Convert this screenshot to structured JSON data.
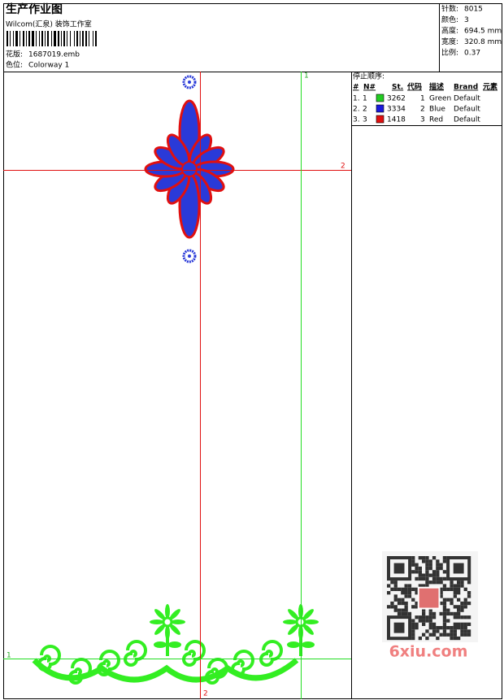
{
  "header": {
    "title": "生产作业图",
    "studio": "Wilcom(汇泉) 装饰工作室",
    "file_label": "花版:",
    "file": "1687019.emb",
    "colorway_label": "色位:",
    "colorway": "Colorway 1"
  },
  "stats": [
    {
      "label": "针数:",
      "value": "8015"
    },
    {
      "label": "颜色:",
      "value": "3"
    },
    {
      "label": "高度:",
      "value": "694.5 mm"
    },
    {
      "label": "宽度:",
      "value": "320.8 mm"
    },
    {
      "label": "比例:",
      "value": "0.37"
    }
  ],
  "stop_sequence": {
    "title": "停止顺序:",
    "columns": [
      "#",
      "N#",
      "St.",
      "代码",
      "描述",
      "Brand",
      "元素"
    ],
    "rows": [
      {
        "index": "1.",
        "n": "1",
        "color": "#22cc22",
        "stitch": "3262",
        "code": "1",
        "desc": "Green",
        "brand": "Default"
      },
      {
        "index": "2.",
        "n": "2",
        "color": "#1a1adc",
        "stitch": "3334",
        "code": "2",
        "desc": "Blue",
        "brand": "Default"
      },
      {
        "index": "3.",
        "n": "3",
        "color": "#e01010",
        "stitch": "1418",
        "code": "3",
        "desc": "Red",
        "brand": "Default"
      }
    ]
  },
  "guides": {
    "v_green": "1",
    "h_red": "2",
    "v_red": "2",
    "h_green": "1"
  },
  "watermark": "6xiu.com"
}
